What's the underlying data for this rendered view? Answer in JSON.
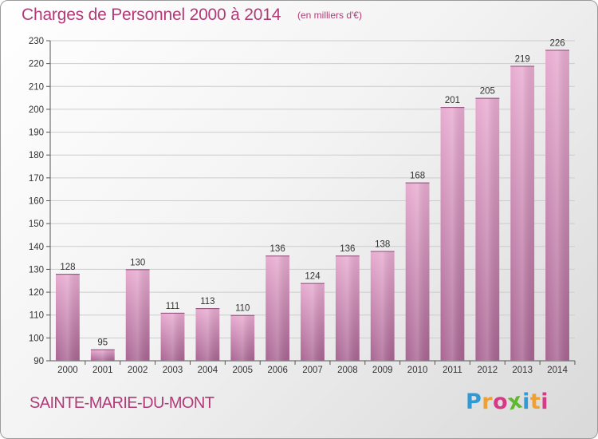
{
  "title": "Charges de Personnel 2000 à 2014",
  "subtitle": "(en milliers d'€)",
  "town": "SAINTE-MARIE-DU-MONT",
  "logo": {
    "letters": [
      "P",
      "r",
      "o",
      "x",
      "i",
      "t",
      "i"
    ],
    "colors": [
      "#2e9bd6",
      "#f0a030",
      "#d63a86",
      "#5fb830",
      "#2e9bd6",
      "#f0a030",
      "#d63a86"
    ]
  },
  "colors": {
    "title": "#b23a77",
    "bar_top": "#e8abd0",
    "bar_bottom": "#a96593",
    "grid": "#cccccc"
  },
  "chart_data": {
    "type": "bar",
    "title": "Charges de Personnel 2000 à 2014",
    "subtitle": "(en milliers d'€)",
    "categories": [
      "2000",
      "2001",
      "2002",
      "2003",
      "2004",
      "2005",
      "2006",
      "2007",
      "2008",
      "2009",
      "2010",
      "2011",
      "2012",
      "2013",
      "2014"
    ],
    "values": [
      128,
      95,
      130,
      111,
      113,
      110,
      136,
      124,
      136,
      138,
      168,
      201,
      205,
      219,
      226
    ],
    "ylim": [
      90,
      230
    ],
    "yticks": [
      90,
      100,
      110,
      120,
      130,
      140,
      150,
      160,
      170,
      180,
      190,
      200,
      210,
      220,
      230
    ],
    "grid": true,
    "xlabel": "",
    "ylabel": ""
  }
}
